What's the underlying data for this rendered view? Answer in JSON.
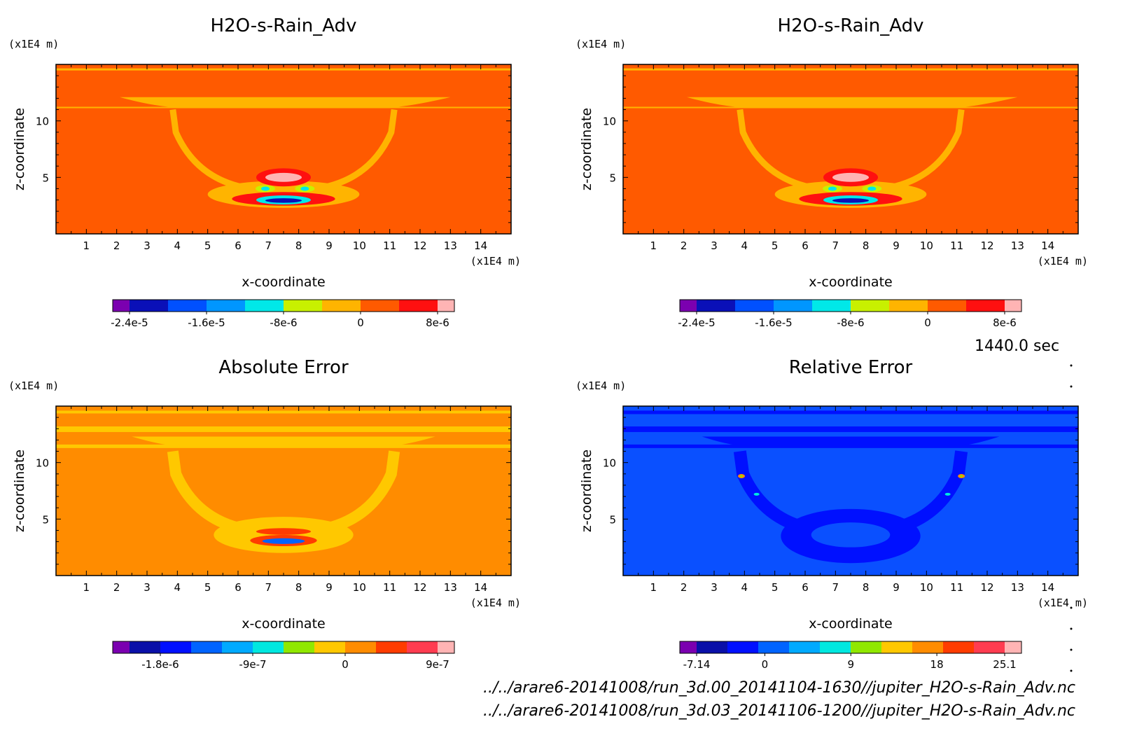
{
  "time_label": "1440.0 sec",
  "files": [
    "../../arare6-20141008/run_3d.00_20141104-1630//jupiter_H2O-s-Rain_Adv.nc",
    "../../arare6-20141008/run_3d.03_20141106-1200//jupiter_H2O-s-Rain_Adv.nc"
  ],
  "chart_data": [
    {
      "type": "heatmap",
      "title": "H2O-s-Rain_Adv",
      "xlabel": "x-coordinate",
      "ylabel": "z-coordinate",
      "x_unit": "(x1E4 m)",
      "y_unit": "(x1E4 m)",
      "xlim": [
        0,
        15
      ],
      "ylim": [
        0,
        15
      ],
      "x_ticks": [
        1,
        2,
        3,
        4,
        5,
        6,
        7,
        8,
        9,
        10,
        11,
        12,
        13,
        14
      ],
      "y_ticks": [
        5,
        10
      ],
      "field_background": "#ff5a00",
      "levels_colors": [
        "#7b00b0",
        "#0a10b8",
        "#0050ff",
        "#0096ff",
        "#00e8e8",
        "#c8f000",
        "#ffb400",
        "#ff5a00",
        "#ff1010",
        "#ffb4b4"
      ],
      "colorbar_labels": [
        "-2.4e-5",
        "-1.6e-5",
        "-8e-6",
        "0",
        "8e-6"
      ],
      "colorbar_values": [
        -2.4e-05,
        -1.6e-05,
        -8e-06,
        0,
        8e-06
      ]
    },
    {
      "type": "heatmap",
      "title": "H2O-s-Rain_Adv",
      "xlabel": "x-coordinate",
      "ylabel": "z-coordinate",
      "x_unit": "(x1E4 m)",
      "y_unit": "(x1E4 m)",
      "xlim": [
        0,
        15
      ],
      "ylim": [
        0,
        15
      ],
      "x_ticks": [
        1,
        2,
        3,
        4,
        5,
        6,
        7,
        8,
        9,
        10,
        11,
        12,
        13,
        14
      ],
      "y_ticks": [
        5,
        10
      ],
      "field_background": "#ff5a00",
      "levels_colors": [
        "#7b00b0",
        "#0a10b8",
        "#0050ff",
        "#0096ff",
        "#00e8e8",
        "#c8f000",
        "#ffb400",
        "#ff5a00",
        "#ff1010",
        "#ffb4b4"
      ],
      "colorbar_labels": [
        "-2.4e-5",
        "-1.6e-5",
        "-8e-6",
        "0",
        "8e-6"
      ],
      "colorbar_values": [
        -2.4e-05,
        -1.6e-05,
        -8e-06,
        0,
        8e-06
      ]
    },
    {
      "type": "heatmap",
      "title": "Absolute Error",
      "xlabel": "x-coordinate",
      "ylabel": "z-coordinate",
      "x_unit": "(x1E4 m)",
      "y_unit": "(x1E4 m)",
      "xlim": [
        0,
        15
      ],
      "ylim": [
        0,
        15
      ],
      "x_ticks": [
        1,
        2,
        3,
        4,
        5,
        6,
        7,
        8,
        9,
        10,
        11,
        12,
        13,
        14
      ],
      "y_ticks": [
        5,
        10
      ],
      "field_background": "#ff8c00",
      "levels_colors": [
        "#7b00b0",
        "#0a10a8",
        "#0010ff",
        "#0064ff",
        "#00aaff",
        "#00e8e0",
        "#90e800",
        "#ffc800",
        "#ff8c00",
        "#ff3c00",
        "#ff3c50",
        "#ffb4b4"
      ],
      "colorbar_labels": [
        "-1.8e-6",
        "-9e-7",
        "0",
        "9e-7"
      ],
      "colorbar_values": [
        -1.8e-06,
        -9e-07,
        0,
        9e-07
      ]
    },
    {
      "type": "heatmap",
      "title": "Relative Error",
      "xlabel": "x-coordinate",
      "ylabel": "z-coordinate",
      "x_unit": "(x1E4 m)",
      "y_unit": "(x1E4 m)",
      "xlim": [
        0,
        15
      ],
      "ylim": [
        0,
        15
      ],
      "x_ticks": [
        1,
        2,
        3,
        4,
        5,
        6,
        7,
        8,
        9,
        10,
        11,
        12,
        13,
        14
      ],
      "y_ticks": [
        5,
        10
      ],
      "field_background": "#0a50ff",
      "levels_colors": [
        "#7b00b0",
        "#0a10a8",
        "#0010ff",
        "#0064ff",
        "#00aaff",
        "#00e8e0",
        "#90e800",
        "#ffc800",
        "#ff8c00",
        "#ff3c00",
        "#ff3c50",
        "#ffb4b4"
      ],
      "colorbar_labels": [
        "-7.14",
        "0",
        "9",
        "18",
        "25.1"
      ],
      "colorbar_values": [
        -7.14,
        0,
        9,
        18,
        25.1
      ]
    }
  ]
}
